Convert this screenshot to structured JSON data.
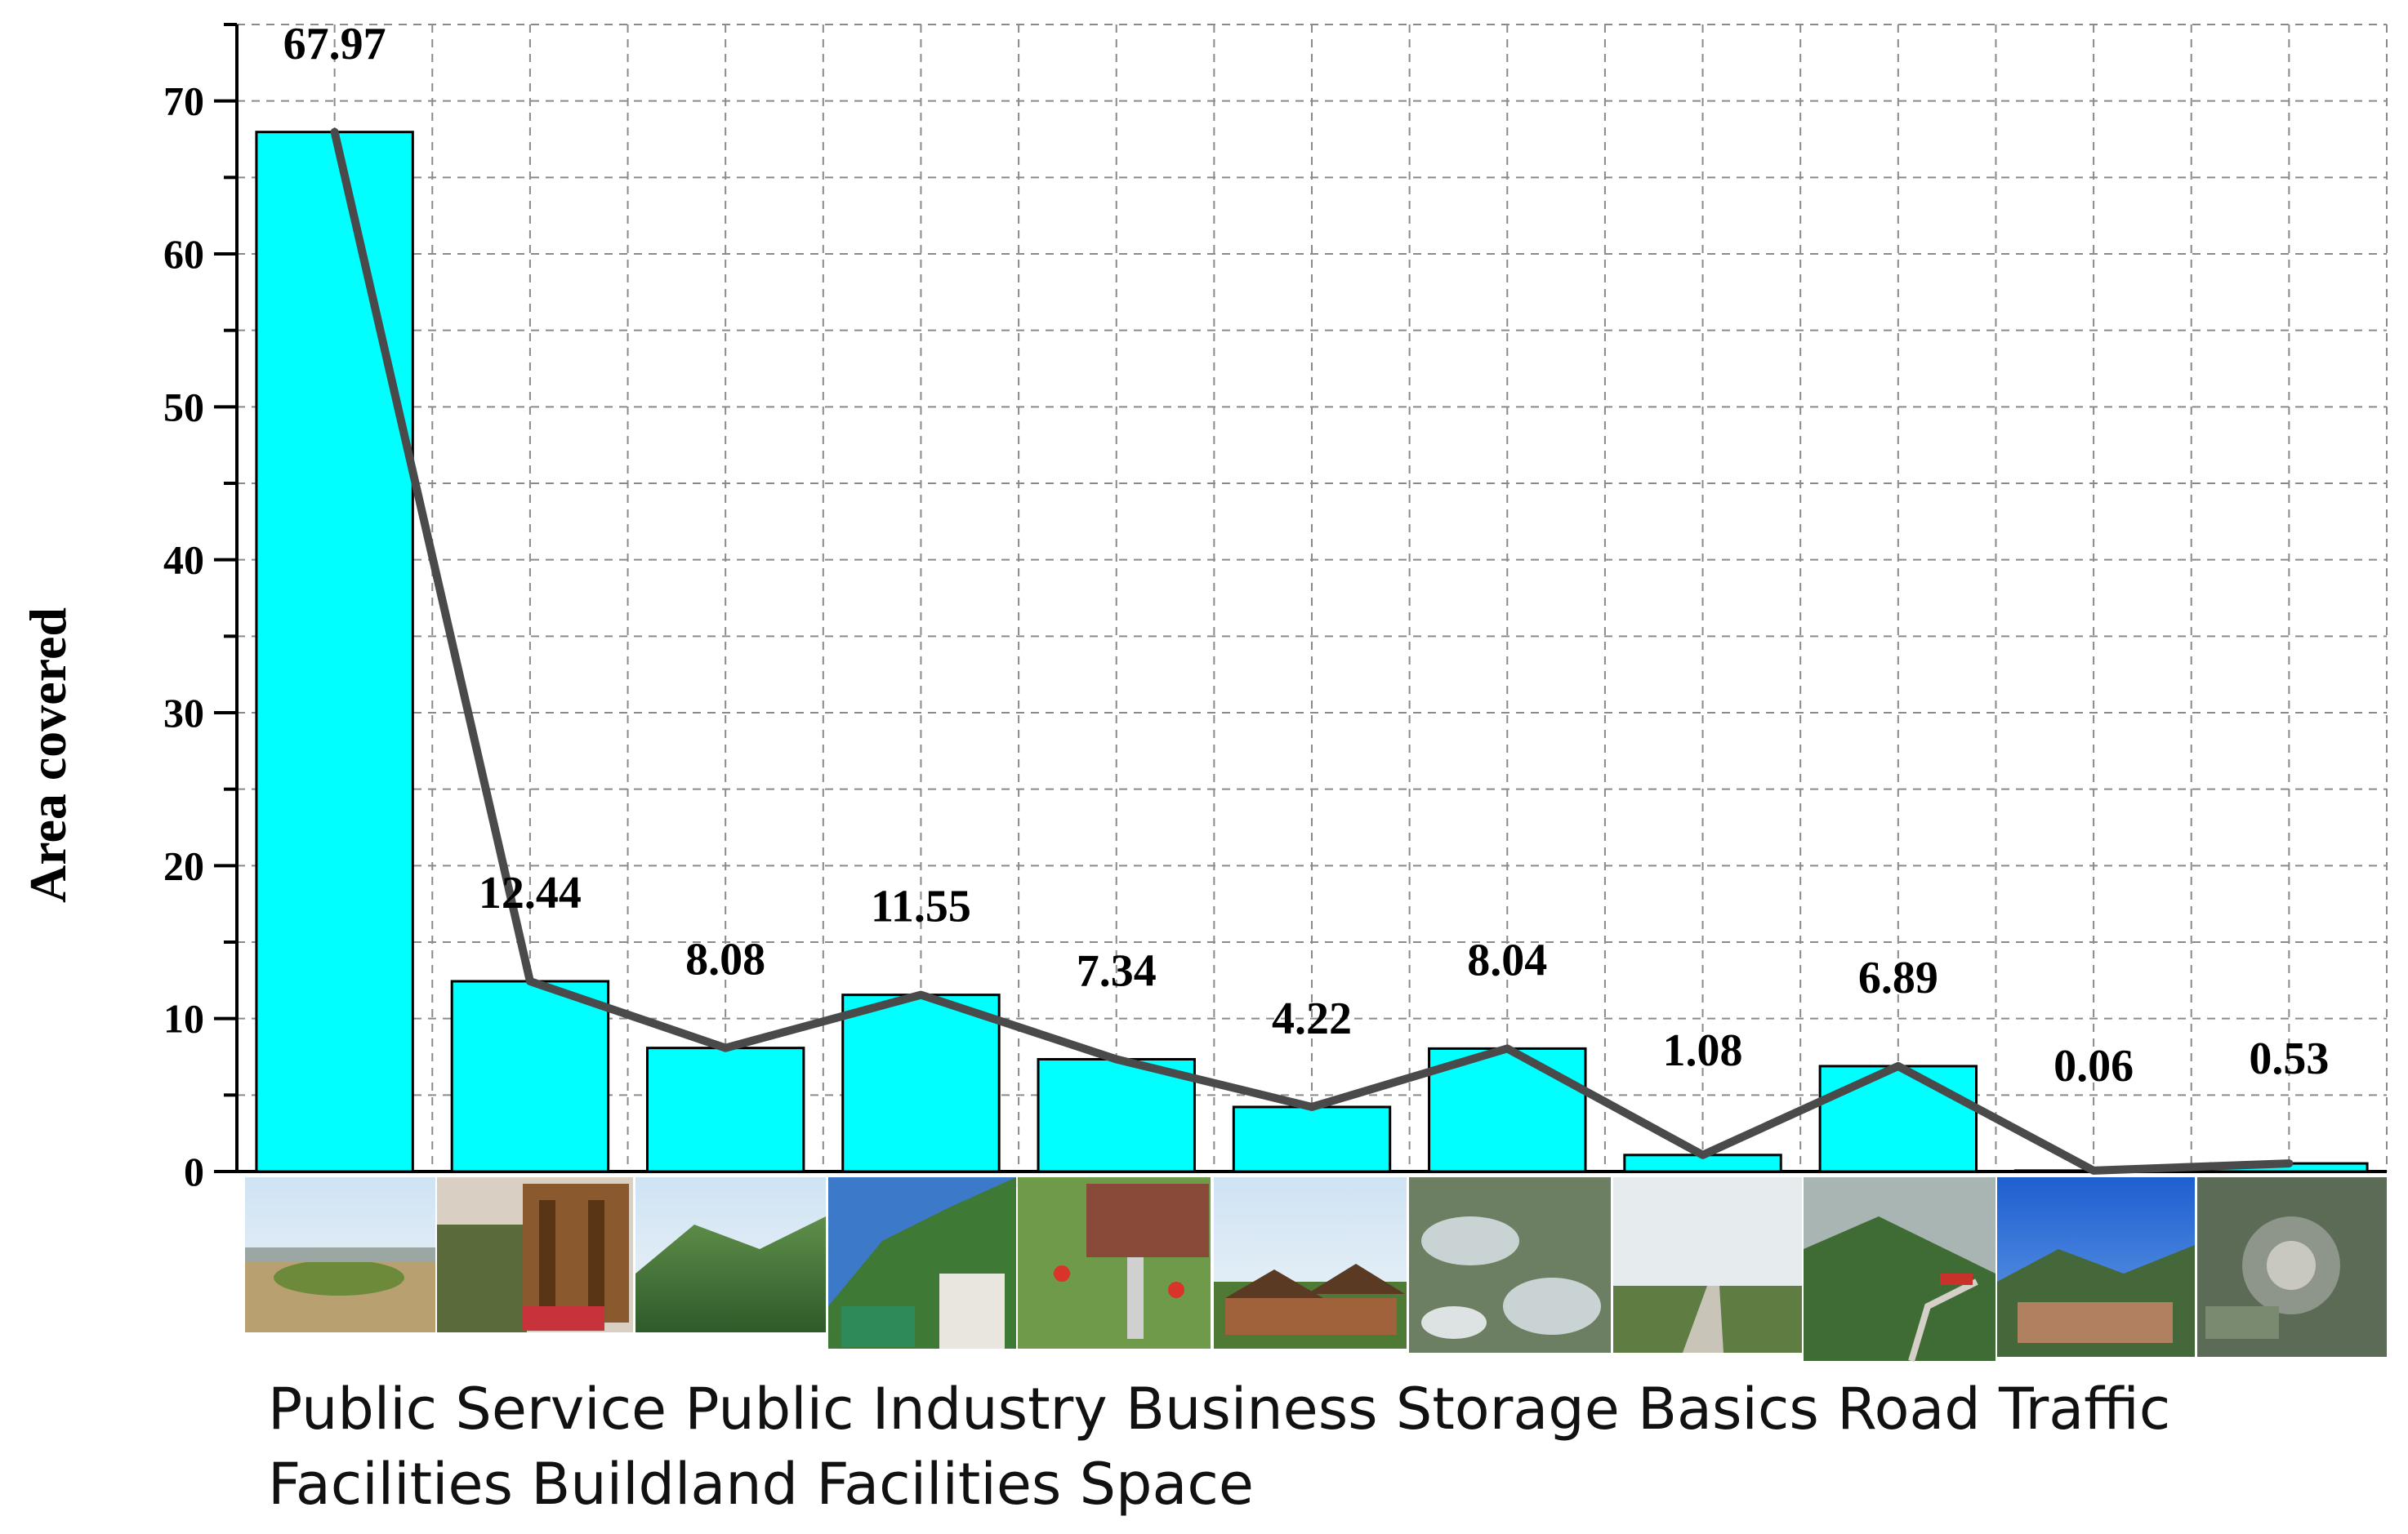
{
  "chart_data": {
    "type": "bar",
    "ylabel": "Area covered",
    "ylim": [
      0,
      75
    ],
    "yticks": [
      0,
      10,
      20,
      30,
      40,
      50,
      60,
      70
    ],
    "values": [
      67.97,
      12.44,
      8.08,
      11.55,
      7.34,
      4.22,
      8.04,
      1.08,
      6.89,
      0.06,
      0.53
    ],
    "labels": [
      "67.97",
      "12.44",
      "8.08",
      "11.55",
      "7.34",
      "4.22",
      "8.04",
      "1.08",
      "6.89",
      "0.06",
      "0.53"
    ],
    "grid": true,
    "overlay_line": true,
    "bar_color": "#00ffff",
    "line_color": "#4a4a4a"
  },
  "caption": {
    "line1": "Public Service Public Industry Business Storage Basics Road Traffic",
    "line2": "Facilities Buildland Facilities Space"
  },
  "photos": [
    "farmland-landscape-photo",
    "wooden-pavilion-photo",
    "mountain-valley-photo",
    "hillside-buildings-photo",
    "street-market-photo",
    "village-houses-photo",
    "terraced-ponds-photo",
    "country-road-photo",
    "mountain-road-photo",
    "village-panorama-photo",
    "aerial-settlement-photo"
  ]
}
